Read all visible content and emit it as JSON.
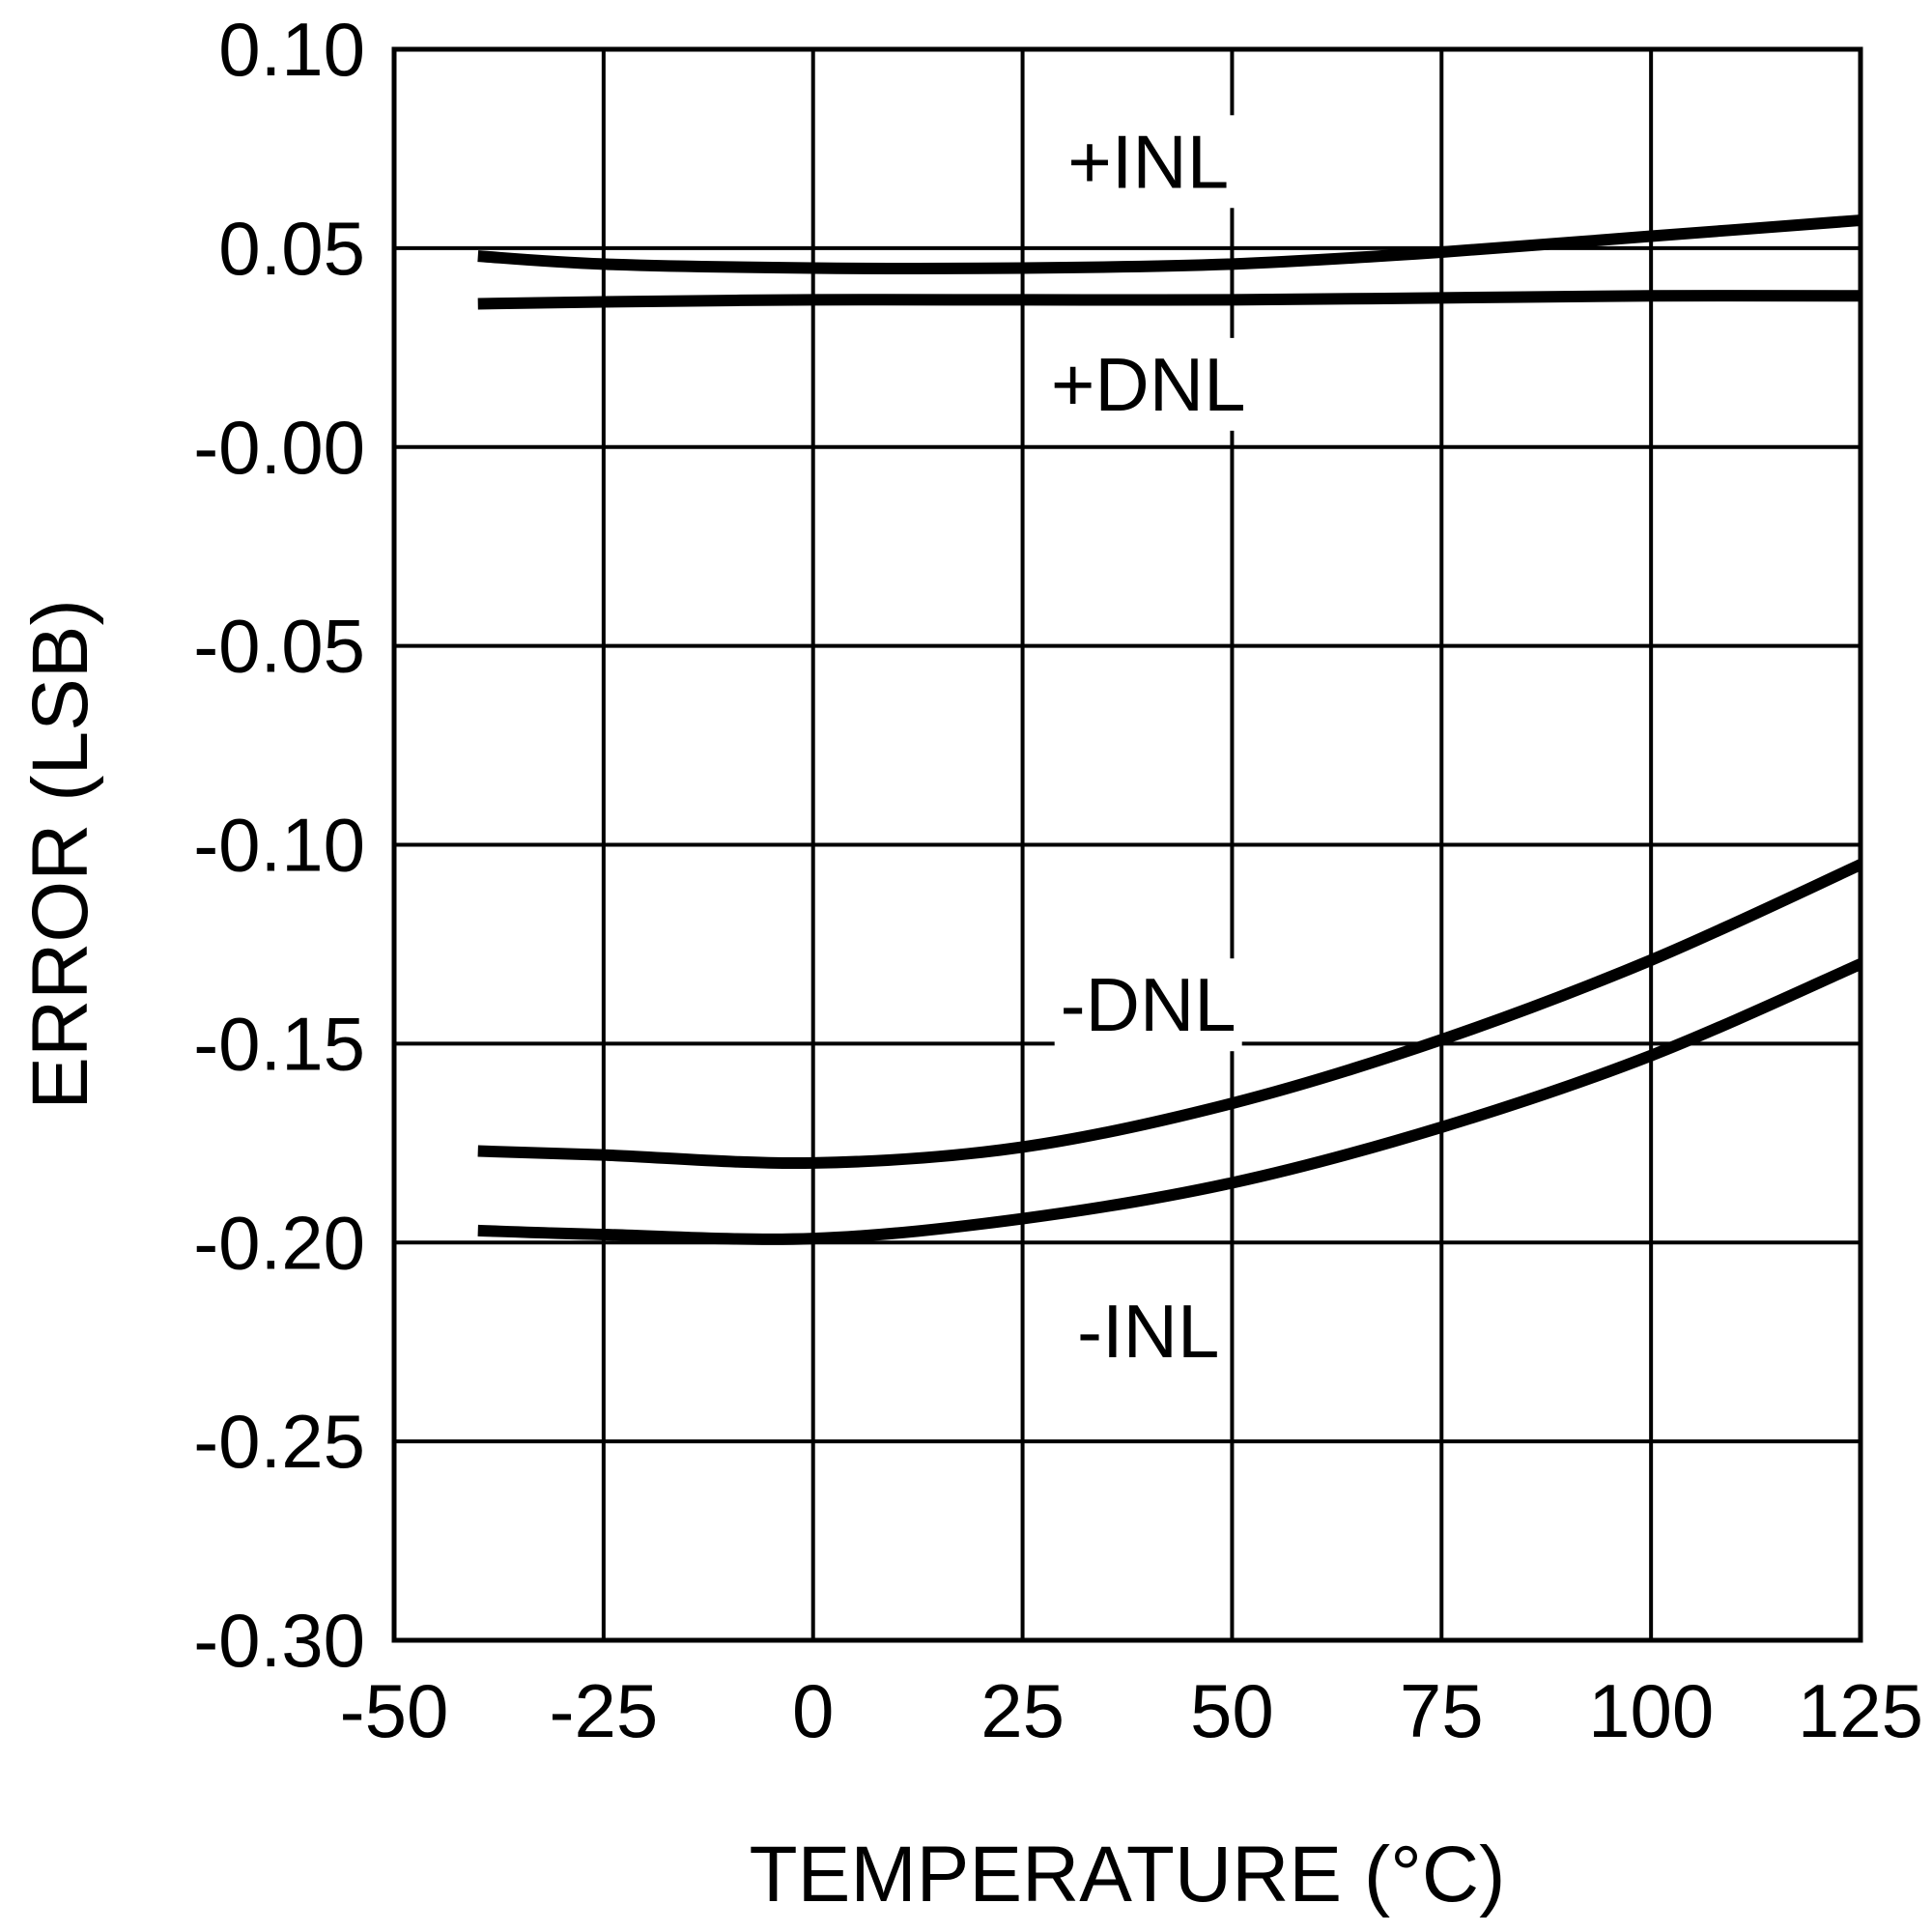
{
  "chart_data": {
    "type": "line",
    "title": "",
    "xlabel": "TEMPERATURE (°C)",
    "ylabel": "ERROR (LSB)",
    "xlim": [
      -50,
      125
    ],
    "ylim": [
      -0.3,
      0.1
    ],
    "grid": true,
    "x_ticks": [
      -50,
      -25,
      0,
      25,
      50,
      75,
      100,
      125
    ],
    "x_tick_labels": [
      "-50",
      "-25",
      "0",
      "25",
      "50",
      "75",
      "100",
      "125"
    ],
    "y_ticks": [
      0.1,
      0.05,
      0.0,
      -0.05,
      -0.1,
      -0.15,
      -0.2,
      -0.25,
      -0.3
    ],
    "y_tick_labels": [
      "0.10",
      "0.05",
      "-0.00",
      "-0.05",
      "-0.10",
      "-0.15",
      "-0.20",
      "-0.25",
      "-0.30"
    ],
    "series": [
      {
        "name": "+INL",
        "label": "+INL",
        "x": [
          -40,
          -25,
          0,
          25,
          50,
          75,
          100,
          125
        ],
        "y": [
          0.048,
          0.046,
          0.045,
          0.045,
          0.046,
          0.049,
          0.053,
          0.057
        ]
      },
      {
        "name": "+DNL",
        "label": "+DNL",
        "x": [
          -40,
          -25,
          0,
          25,
          50,
          75,
          100,
          125
        ],
        "y": [
          0.036,
          0.0365,
          0.037,
          0.037,
          0.037,
          0.0375,
          0.038,
          0.038
        ]
      },
      {
        "name": "-DNL",
        "label": "-DNL",
        "x": [
          -40,
          -25,
          0,
          25,
          50,
          75,
          100,
          125
        ],
        "y": [
          -0.177,
          -0.178,
          -0.18,
          -0.176,
          -0.165,
          -0.149,
          -0.129,
          -0.105
        ]
      },
      {
        "name": "-INL",
        "label": "-INL",
        "x": [
          -40,
          -25,
          0,
          25,
          50,
          75,
          100,
          125
        ],
        "y": [
          -0.197,
          -0.198,
          -0.199,
          -0.194,
          -0.185,
          -0.171,
          -0.153,
          -0.13
        ]
      }
    ],
    "annotations": [
      {
        "text": "+INL",
        "x": 40,
        "y": 0.072
      },
      {
        "text": "+DNL",
        "x": 40,
        "y": 0.016
      },
      {
        "text": "-DNL",
        "x": 40,
        "y": -0.14
      },
      {
        "text": "-INL",
        "x": 40,
        "y": -0.222
      }
    ]
  }
}
